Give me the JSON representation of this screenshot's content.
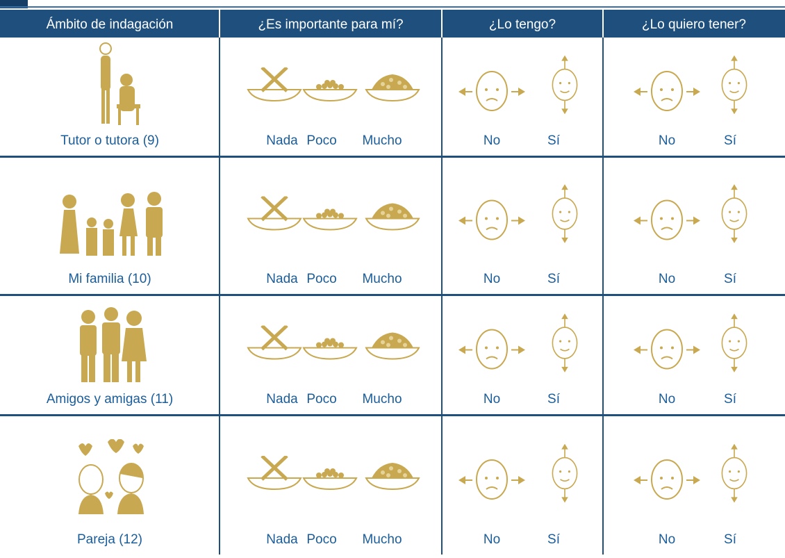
{
  "header": {
    "columns": [
      "Ámbito de indagación",
      "¿Es importante para mí?",
      "¿Lo tengo?",
      "¿Lo quiero tener?"
    ]
  },
  "rows": [
    {
      "label": "Tutor o tutora (9)",
      "importance": [
        "Nada",
        "Poco",
        "Mucho"
      ],
      "have": [
        "No",
        "Sí"
      ],
      "want": [
        "No",
        "Sí"
      ]
    },
    {
      "label": "Mi familia (10)",
      "importance": [
        "Nada",
        "Poco",
        "Mucho"
      ],
      "have": [
        "No",
        "Sí"
      ],
      "want": [
        "No",
        "Sí"
      ]
    },
    {
      "label": "Amigos y amigas (11)",
      "importance": [
        "Nada",
        "Poco",
        "Mucho"
      ],
      "have": [
        "No",
        "Sí"
      ],
      "want": [
        "No",
        "Sí"
      ]
    },
    {
      "label": "Pareja (12)",
      "importance": [
        "Nada",
        "Poco",
        "Mucho"
      ],
      "have": [
        "No",
        "Sí"
      ],
      "want": [
        "No",
        "Sí"
      ]
    }
  ]
}
